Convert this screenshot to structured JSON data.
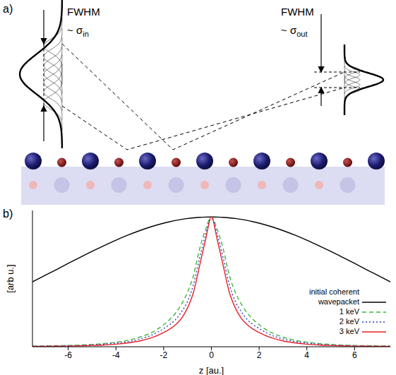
{
  "diagram": {
    "label": "a)",
    "incoming": {
      "label": "FWHM",
      "width": {
        "text": "~ σ",
        "subscript": "in"
      }
    },
    "outgoing": {
      "label": "FWHM",
      "width": {
        "text": "~ σ",
        "subscript": "out"
      }
    }
  },
  "chart_data": {
    "type": "line",
    "panel_label": "b)",
    "x_label": "z [au.]",
    "y_label": "[arb u.]",
    "x": [
      -7.5,
      -7,
      -6.5,
      -6,
      -5.5,
      -5,
      -4.5,
      -4,
      -3.5,
      -3,
      -2.5,
      -2,
      -1.75,
      -1.5,
      -1.25,
      -1,
      -0.75,
      -0.5,
      -0.25,
      0,
      0.25,
      0.5,
      0.75,
      1,
      1.25,
      1.5,
      1.75,
      2,
      2.5,
      3,
      3.5,
      4,
      4.5,
      5,
      5.5,
      6,
      6.5,
      7,
      7.5
    ],
    "xlim": [
      -7.5,
      7.5
    ],
    "xticks": [
      -6,
      -4,
      -2,
      0,
      2,
      4,
      6
    ],
    "ylim": [
      0,
      1.05
    ],
    "tick_labels": "x",
    "legend": "lower right",
    "series": [
      {
        "name": "initial coherent wavepacket",
        "color": "#000000",
        "line_style": "solid",
        "values": [
          0.5,
          0.547,
          0.594,
          0.642,
          0.689,
          0.735,
          0.779,
          0.821,
          0.86,
          0.895,
          0.926,
          0.952,
          0.963,
          0.973,
          0.981,
          0.988,
          0.993,
          0.997,
          0.999,
          1,
          0.999,
          0.997,
          0.993,
          0.988,
          0.981,
          0.973,
          0.963,
          0.952,
          0.926,
          0.895,
          0.86,
          0.821,
          0.779,
          0.735,
          0.689,
          0.642,
          0.594,
          0.547,
          0.5
        ]
      },
      {
        "name": "1 keV",
        "color": "#3cb83c",
        "line_style": "dashed",
        "values": [
          0.005,
          0.006,
          0.008,
          0.01,
          0.013,
          0.018,
          0.025,
          0.035,
          0.05,
          0.075,
          0.11,
          0.17,
          0.21,
          0.26,
          0.33,
          0.42,
          0.55,
          0.75,
          0.9,
          1,
          0.9,
          0.75,
          0.55,
          0.42,
          0.33,
          0.26,
          0.21,
          0.17,
          0.11,
          0.075,
          0.05,
          0.035,
          0.025,
          0.018,
          0.013,
          0.01,
          0.008,
          0.006,
          0.005
        ]
      },
      {
        "name": "2 keV",
        "color": "#2b3fbf",
        "line_style": "dotted",
        "values": [
          0.004,
          0.005,
          0.006,
          0.008,
          0.01,
          0.014,
          0.02,
          0.028,
          0.04,
          0.06,
          0.09,
          0.14,
          0.17,
          0.21,
          0.27,
          0.35,
          0.48,
          0.68,
          0.86,
          1,
          0.86,
          0.68,
          0.48,
          0.35,
          0.27,
          0.21,
          0.17,
          0.14,
          0.09,
          0.06,
          0.04,
          0.028,
          0.02,
          0.014,
          0.01,
          0.008,
          0.006,
          0.005,
          0.004
        ]
      },
      {
        "name": "3 keV",
        "color": "#e8202a",
        "line_style": "solid",
        "values": [
          0.002,
          0.003,
          0.004,
          0.005,
          0.007,
          0.01,
          0.014,
          0.02,
          0.03,
          0.045,
          0.07,
          0.11,
          0.135,
          0.17,
          0.22,
          0.3,
          0.42,
          0.62,
          0.82,
          1,
          0.82,
          0.62,
          0.42,
          0.3,
          0.22,
          0.17,
          0.135,
          0.11,
          0.07,
          0.045,
          0.03,
          0.02,
          0.014,
          0.01,
          0.007,
          0.005,
          0.004,
          0.003,
          0.002
        ]
      }
    ]
  }
}
